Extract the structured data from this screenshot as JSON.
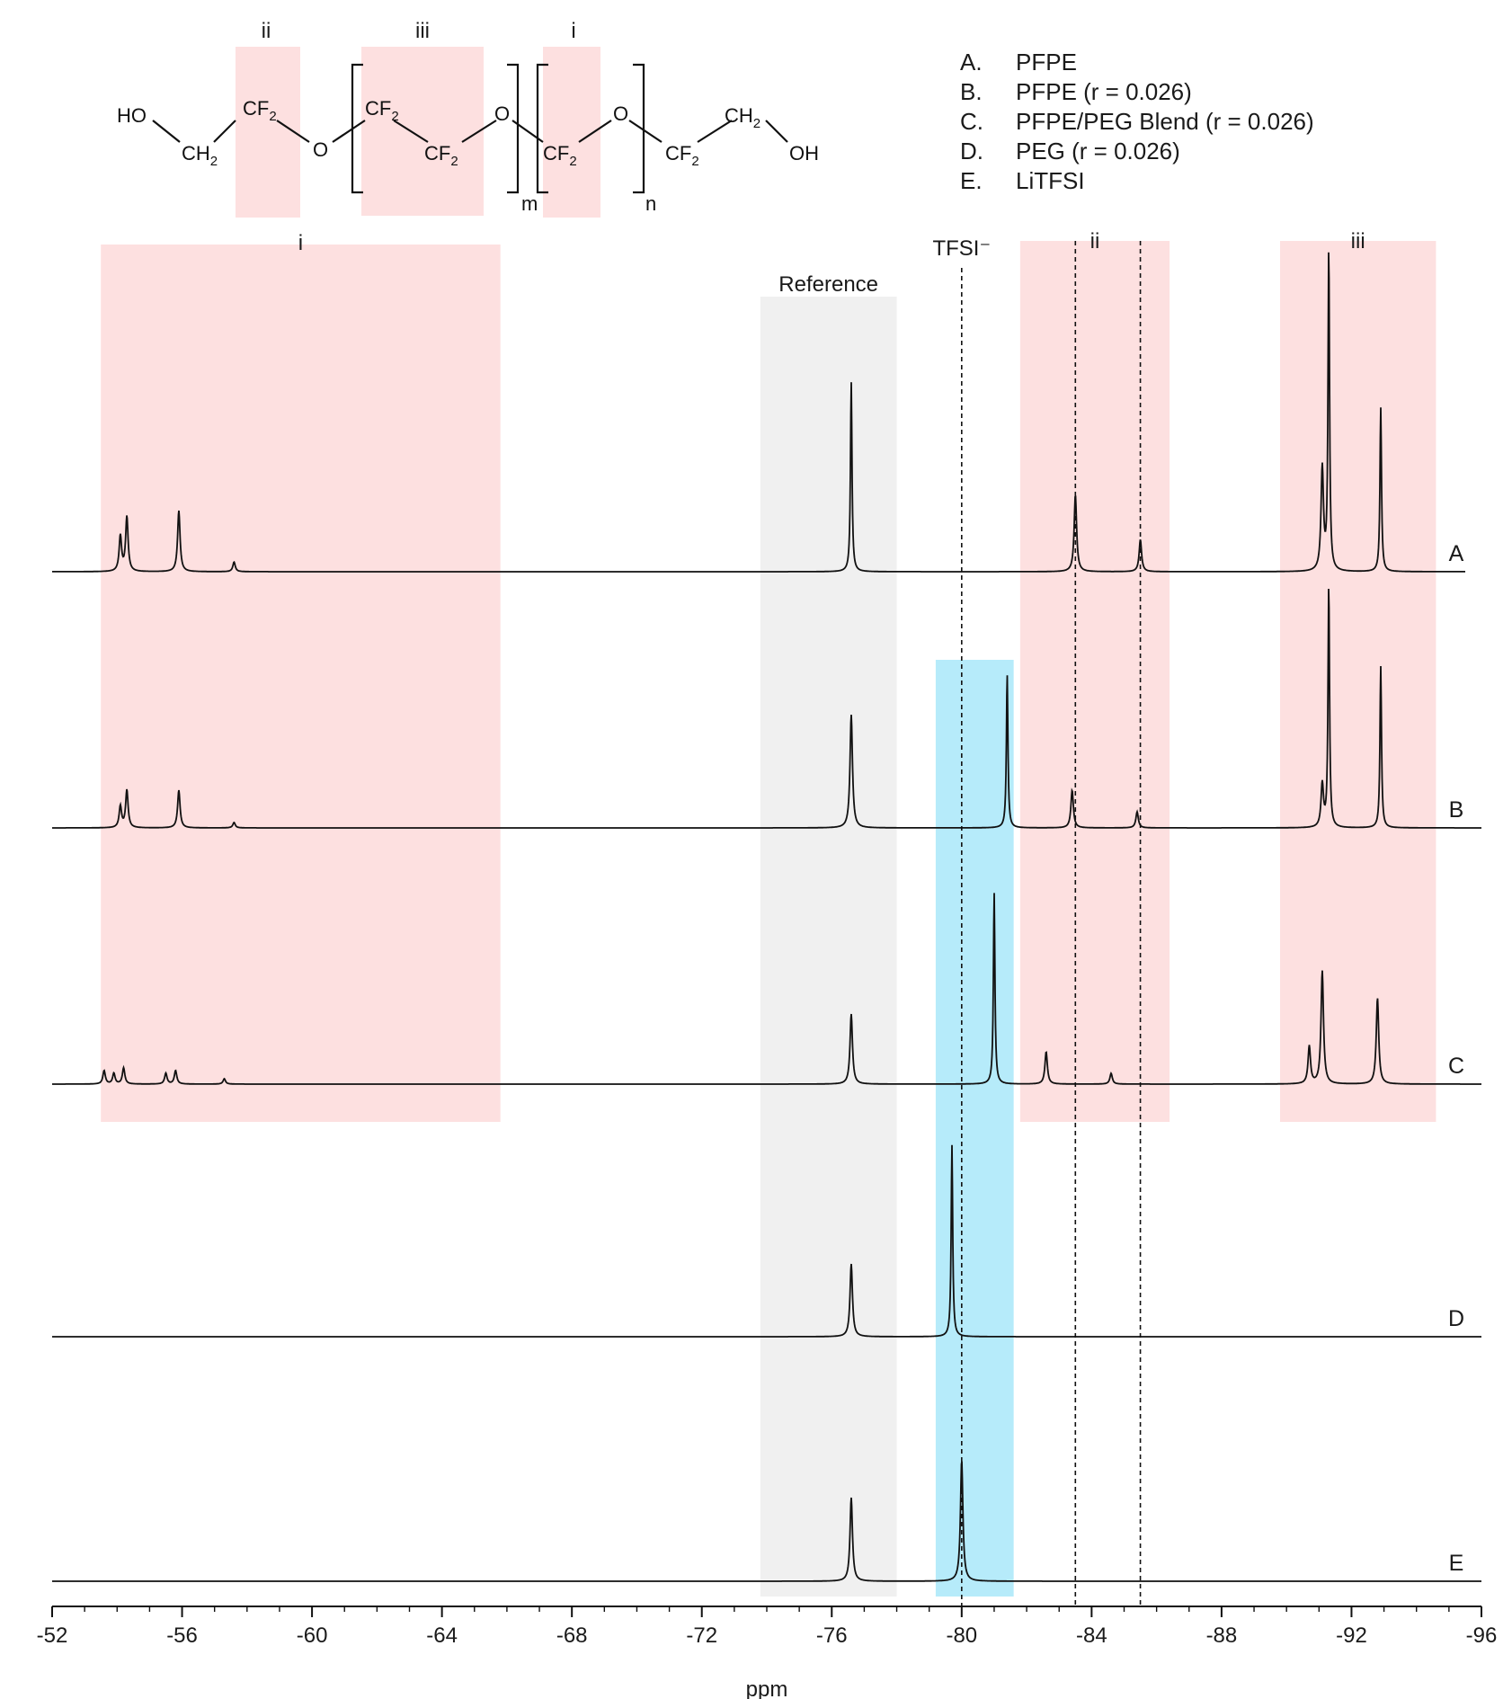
{
  "chart_data": {
    "type": "line",
    "xlabel": "ppm",
    "ylabel": "",
    "xlim": [
      -52,
      -96
    ],
    "xticks": [
      -52,
      -56,
      -60,
      -64,
      -68,
      -72,
      -76,
      -80,
      -84,
      -88,
      -92,
      -96
    ],
    "grid": false,
    "legend_position": "top-right",
    "legend": [
      {
        "key": "A.",
        "text": "PFPE"
      },
      {
        "key": "B.",
        "text": "PFPE (r = 0.026)"
      },
      {
        "key": "C.",
        "text": "PFPE/PEG Blend (r = 0.026)"
      },
      {
        "key": "D.",
        "text": "PEG (r = 0.026)"
      },
      {
        "key": "E.",
        "text": "LiTFSI"
      }
    ],
    "regions": [
      {
        "label": "i",
        "from": -53.5,
        "to": -65.8,
        "color": "#fde0e0"
      },
      {
        "label": "Reference",
        "from": -73.8,
        "to": -78.0,
        "color": "#f0f0f0"
      },
      {
        "label": "",
        "from": -79.2,
        "to": -81.6,
        "color": "#b6ebfa"
      },
      {
        "label": "ii",
        "from": -81.8,
        "to": -86.4,
        "color": "#fde0e0"
      },
      {
        "label": "iii",
        "from": -89.8,
        "to": -94.6,
        "color": "#fde0e0"
      }
    ],
    "vlines": [
      {
        "x": -80.0,
        "label": "TFSI⁻"
      },
      {
        "x": -83.5,
        "label": ""
      },
      {
        "x": -85.5,
        "label": ""
      }
    ],
    "series": [
      {
        "name": "A",
        "peaks": [
          {
            "x": -54.1,
            "h": 0.11
          },
          {
            "x": -54.3,
            "h": 0.17
          },
          {
            "x": -55.9,
            "h": 0.19
          },
          {
            "x": -57.6,
            "h": 0.03
          },
          {
            "x": -76.6,
            "h": 0.59
          },
          {
            "x": -83.5,
            "h": 0.24
          },
          {
            "x": -85.5,
            "h": 0.1
          },
          {
            "x": -91.1,
            "h": 0.32
          },
          {
            "x": -91.3,
            "h": 1.0
          },
          {
            "x": -92.9,
            "h": 0.51
          }
        ]
      },
      {
        "name": "B",
        "peaks": [
          {
            "x": -54.1,
            "h": 0.08
          },
          {
            "x": -54.3,
            "h": 0.14
          },
          {
            "x": -55.9,
            "h": 0.14
          },
          {
            "x": -57.6,
            "h": 0.02
          },
          {
            "x": -76.6,
            "h": 0.42
          },
          {
            "x": -81.4,
            "h": 0.57
          },
          {
            "x": -83.4,
            "h": 0.14
          },
          {
            "x": -85.4,
            "h": 0.06
          },
          {
            "x": -91.1,
            "h": 0.16
          },
          {
            "x": -91.3,
            "h": 0.9
          },
          {
            "x": -92.9,
            "h": 0.6
          }
        ]
      },
      {
        "name": "C",
        "peaks": [
          {
            "x": -53.6,
            "h": 0.05
          },
          {
            "x": -53.9,
            "h": 0.04
          },
          {
            "x": -54.2,
            "h": 0.06
          },
          {
            "x": -55.5,
            "h": 0.04
          },
          {
            "x": -55.8,
            "h": 0.05
          },
          {
            "x": -57.3,
            "h": 0.02
          },
          {
            "x": -76.6,
            "h": 0.26
          },
          {
            "x": -81.0,
            "h": 0.71
          },
          {
            "x": -82.6,
            "h": 0.12
          },
          {
            "x": -84.6,
            "h": 0.04
          },
          {
            "x": -90.7,
            "h": 0.14
          },
          {
            "x": -91.1,
            "h": 0.42
          },
          {
            "x": -92.8,
            "h": 0.32
          }
        ]
      },
      {
        "name": "D",
        "peaks": [
          {
            "x": -76.6,
            "h": 0.3
          },
          {
            "x": -79.7,
            "h": 0.79
          }
        ]
      },
      {
        "name": "E",
        "peaks": [
          {
            "x": -76.6,
            "h": 0.31
          },
          {
            "x": -80.0,
            "h": 0.45
          }
        ]
      }
    ]
  },
  "structure": {
    "region_labels": [
      "ii",
      "iii",
      "i"
    ],
    "atoms": {
      "ho": "HO",
      "ch2": "CH",
      "cf2": "CF",
      "o": "O",
      "oh": "OH",
      "sub2": "2",
      "m": "m",
      "n": "n"
    }
  }
}
